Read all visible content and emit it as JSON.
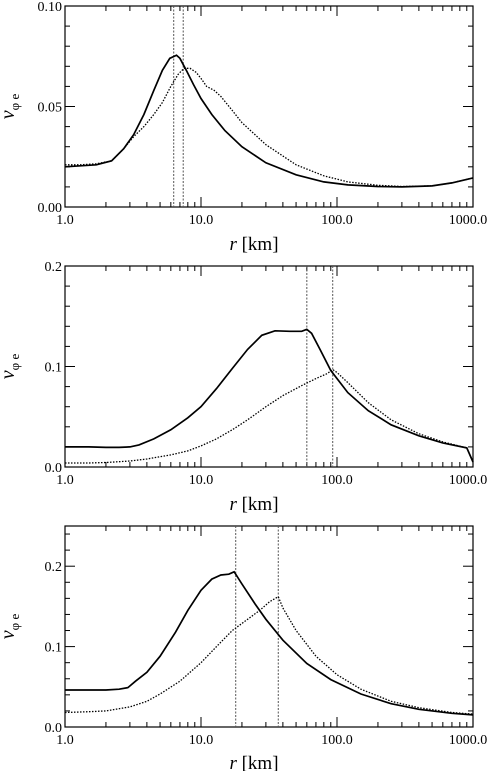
{
  "chart_data": [
    {
      "type": "line",
      "xscale": "log",
      "xlim": [
        1,
        1000
      ],
      "ylim": [
        0,
        0.1
      ],
      "xticks": [
        "1.0",
        "10.0",
        "100.0",
        "1000.0"
      ],
      "yticks": [
        "0.00",
        "0.05",
        "0.10"
      ],
      "xlabel_var": "r",
      "xlabel_unit": "[km]",
      "ylabel_var": "v",
      "ylabel_sub": "φ e",
      "vlines": [
        6.3,
        7.4
      ],
      "series": [
        {
          "style": "solid",
          "x": [
            1.0,
            1.3,
            1.7,
            2.2,
            2.7,
            3.2,
            3.8,
            4.5,
            5.2,
            5.9,
            6.6,
            7.0,
            7.8,
            8.8,
            10,
            12,
            15,
            20,
            30,
            50,
            80,
            120,
            200,
            300,
            500,
            700,
            1000
          ],
          "y": [
            0.02,
            0.0205,
            0.021,
            0.023,
            0.029,
            0.036,
            0.046,
            0.058,
            0.068,
            0.074,
            0.0755,
            0.074,
            0.068,
            0.061,
            0.054,
            0.046,
            0.038,
            0.03,
            0.022,
            0.016,
            0.0125,
            0.011,
            0.0102,
            0.01,
            0.0105,
            0.012,
            0.0145
          ]
        },
        {
          "style": "dotted",
          "x": [
            1.0,
            1.3,
            1.7,
            2.2,
            2.7,
            3.2,
            3.8,
            4.5,
            5.2,
            6.0,
            6.8,
            7.5,
            8.3,
            9.2,
            10,
            11,
            12.5,
            14,
            17,
            20,
            30,
            50,
            80,
            120,
            200,
            300,
            500,
            700,
            1000
          ],
          "y": [
            0.021,
            0.021,
            0.0215,
            0.023,
            0.029,
            0.035,
            0.04,
            0.046,
            0.052,
            0.06,
            0.066,
            0.069,
            0.069,
            0.067,
            0.064,
            0.06,
            0.058,
            0.055,
            0.048,
            0.042,
            0.031,
            0.021,
            0.0155,
            0.0125,
            0.0108,
            0.0102,
            0.0105,
            0.012,
            0.0145
          ]
        }
      ]
    },
    {
      "type": "line",
      "xscale": "log",
      "xlim": [
        1,
        1000
      ],
      "ylim": [
        0,
        0.2
      ],
      "xticks": [
        "1.0",
        "10.0",
        "100.0",
        "1000.0"
      ],
      "yticks": [
        "0.0",
        "0.1",
        "0.2"
      ],
      "xlabel_var": "r",
      "xlabel_unit": "[km]",
      "ylabel_var": "v",
      "ylabel_sub": "φ e",
      "vlines": [
        60,
        93
      ],
      "series": [
        {
          "style": "solid",
          "x": [
            1.0,
            1.5,
            2.0,
            2.5,
            3.0,
            3.5,
            4.5,
            6,
            8,
            10,
            13,
            17,
            22,
            28,
            35,
            45,
            55,
            60,
            65,
            75,
            90,
            120,
            170,
            250,
            400,
            600,
            900,
            1000
          ],
          "y": [
            0.02,
            0.02,
            0.0195,
            0.0195,
            0.02,
            0.022,
            0.028,
            0.037,
            0.049,
            0.06,
            0.078,
            0.098,
            0.117,
            0.131,
            0.1355,
            0.135,
            0.135,
            0.137,
            0.133,
            0.117,
            0.096,
            0.074,
            0.056,
            0.042,
            0.031,
            0.024,
            0.019,
            0.005
          ]
        },
        {
          "style": "dotted",
          "x": [
            1.0,
            1.5,
            2.0,
            3.0,
            4.0,
            6,
            8,
            10,
            13,
            17,
            22,
            30,
            40,
            55,
            70,
            85,
            93,
            100,
            120,
            170,
            250,
            400,
            600,
            900,
            1000
          ],
          "y": [
            0.004,
            0.004,
            0.0045,
            0.006,
            0.008,
            0.012,
            0.016,
            0.021,
            0.028,
            0.037,
            0.047,
            0.06,
            0.071,
            0.081,
            0.088,
            0.093,
            0.097,
            0.094,
            0.084,
            0.064,
            0.047,
            0.033,
            0.025,
            0.019,
            0.005
          ]
        }
      ]
    },
    {
      "type": "line",
      "xscale": "log",
      "xlim": [
        1,
        1000
      ],
      "ylim": [
        0,
        0.25
      ],
      "xticks": [
        "1.0",
        "10.0",
        "100.0",
        "1000.0"
      ],
      "yticks": [
        "0.0",
        "0.1",
        "0.2"
      ],
      "xlabel_var": "r",
      "xlabel_unit": "[km]",
      "ylabel_var": "v",
      "ylabel_sub": "φ e",
      "vlines": [
        18,
        37
      ],
      "series": [
        {
          "style": "solid",
          "x": [
            1.0,
            1.5,
            2.0,
            2.5,
            2.9,
            3.3,
            4.0,
            5,
            6.5,
            8,
            10,
            12,
            14,
            16,
            17.5,
            18,
            20,
            25,
            30,
            40,
            60,
            90,
            150,
            250,
            400,
            700,
            1000
          ],
          "y": [
            0.046,
            0.046,
            0.046,
            0.047,
            0.049,
            0.057,
            0.068,
            0.088,
            0.118,
            0.145,
            0.17,
            0.184,
            0.189,
            0.19,
            0.193,
            0.19,
            0.178,
            0.153,
            0.134,
            0.108,
            0.079,
            0.059,
            0.041,
            0.029,
            0.022,
            0.017,
            0.015
          ]
        },
        {
          "style": "dotted",
          "x": [
            1.0,
            1.5,
            2.0,
            3.0,
            4.0,
            5,
            7,
            10,
            13,
            17,
            22,
            27,
            32,
            36,
            37,
            40,
            50,
            70,
            100,
            150,
            250,
            400,
            700,
            1000
          ],
          "y": [
            0.018,
            0.019,
            0.02,
            0.025,
            0.032,
            0.041,
            0.057,
            0.08,
            0.1,
            0.12,
            0.134,
            0.145,
            0.156,
            0.161,
            0.162,
            0.148,
            0.12,
            0.088,
            0.065,
            0.047,
            0.032,
            0.024,
            0.018,
            0.016
          ]
        }
      ]
    }
  ]
}
